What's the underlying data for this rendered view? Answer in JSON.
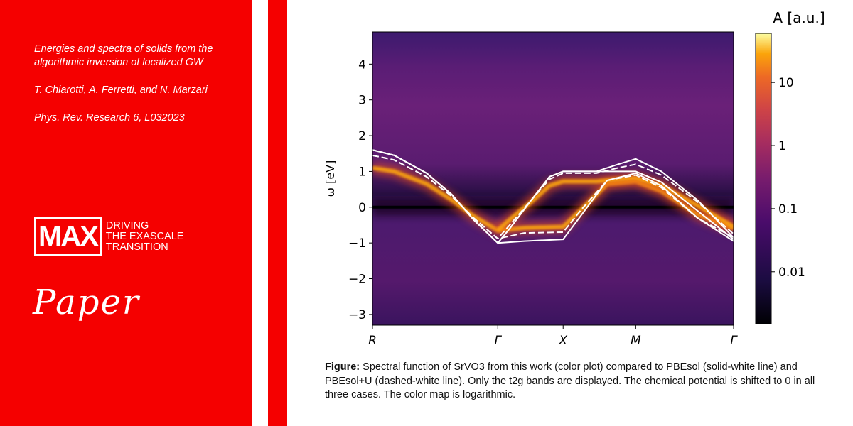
{
  "paper": {
    "title": "Energies and spectra of solids from the algorithmic inversion of localized GW",
    "authors": "T. Chiarotti, A. Ferretti, and N. Marzari",
    "journal": "Phys. Rev. Research 6, L032023"
  },
  "brand": {
    "logo_text": "MAX",
    "tagline": [
      "DRIVING",
      "THE EXASCALE",
      "TRANSITION"
    ],
    "label": "Paper",
    "color": "#f50000"
  },
  "caption": {
    "label": "Figure:",
    "text": "Spectral function of SrVO3 from this work (color plot) compared to PBEsol (solid-white line) and PBEsol+U (dashed-white line). Only the t2g bands are displayed. The chemical potential is shifted to 0 in all three cases. The color map is logarithmic."
  },
  "chart_data": {
    "type": "heatmap",
    "ylabel": "ω [eV]",
    "ylim": [
      -3.3,
      4.9
    ],
    "yticks": [
      4,
      3,
      2,
      1,
      0,
      -1,
      -2,
      -3
    ],
    "xticks": [
      {
        "label": "R",
        "x": 0
      },
      {
        "label": "Γ",
        "x": 0.347
      },
      {
        "label": "X",
        "x": 0.528
      },
      {
        "label": "M",
        "x": 0.729
      },
      {
        "label": "Γ",
        "x": 1
      }
    ],
    "colorbar": {
      "title": "A [a.u.]",
      "scale": "log",
      "ticks": [
        "10",
        "1",
        "0.1",
        "0.01"
      ],
      "tick_values": [
        10,
        1,
        0.1,
        0.01
      ],
      "range": [
        0.0015,
        60
      ]
    },
    "series": [
      {
        "style": "solid-white",
        "lines": [
          [
            [
              0,
              1.6
            ],
            [
              0.06,
              1.45
            ],
            [
              0.15,
              0.95
            ],
            [
              0.22,
              0.35
            ],
            [
              0.28,
              -0.35
            ],
            [
              0.347,
              -1.0
            ],
            [
              0.42,
              -0.95
            ],
            [
              0.528,
              -0.9
            ],
            [
              0.58,
              -0.2
            ],
            [
              0.65,
              0.75
            ],
            [
              0.729,
              0.95
            ],
            [
              0.8,
              0.6
            ],
            [
              0.9,
              -0.3
            ],
            [
              1,
              -0.95
            ]
          ],
          [
            [
              0,
              1.6
            ],
            [
              0.06,
              1.45
            ],
            [
              0.15,
              0.95
            ],
            [
              0.22,
              0.35
            ],
            [
              0.28,
              -0.35
            ],
            [
              0.347,
              -1.0
            ],
            [
              0.38,
              -0.6
            ],
            [
              0.44,
              0.2
            ],
            [
              0.49,
              0.85
            ],
            [
              0.528,
              1.0
            ],
            [
              0.62,
              1.0
            ],
            [
              0.68,
              1.2
            ],
            [
              0.729,
              1.35
            ],
            [
              0.8,
              1.0
            ],
            [
              0.9,
              0.2
            ],
            [
              1,
              -0.85
            ]
          ],
          [
            [
              0,
              1.6
            ],
            [
              0.06,
              1.45
            ],
            [
              0.15,
              0.95
            ],
            [
              0.22,
              0.35
            ],
            [
              0.28,
              -0.35
            ],
            [
              0.347,
              -1.0
            ],
            [
              0.38,
              -0.6
            ],
            [
              0.44,
              0.2
            ],
            [
              0.49,
              0.85
            ],
            [
              0.528,
              1.0
            ],
            [
              0.729,
              1.0
            ],
            [
              0.8,
              0.7
            ],
            [
              0.9,
              -0.1
            ],
            [
              1,
              -0.9
            ]
          ]
        ]
      },
      {
        "style": "dashed-white",
        "lines": [
          [
            [
              0,
              1.45
            ],
            [
              0.06,
              1.32
            ],
            [
              0.15,
              0.85
            ],
            [
              0.22,
              0.3
            ],
            [
              0.28,
              -0.3
            ],
            [
              0.347,
              -0.88
            ],
            [
              0.42,
              -0.72
            ],
            [
              0.528,
              -0.7
            ],
            [
              0.58,
              -0.05
            ],
            [
              0.65,
              0.75
            ],
            [
              0.729,
              0.9
            ],
            [
              0.8,
              0.55
            ],
            [
              0.9,
              -0.3
            ],
            [
              1,
              -0.85
            ]
          ],
          [
            [
              0,
              1.45
            ],
            [
              0.06,
              1.32
            ],
            [
              0.15,
              0.85
            ],
            [
              0.22,
              0.3
            ],
            [
              0.28,
              -0.3
            ],
            [
              0.347,
              -0.88
            ],
            [
              0.38,
              -0.5
            ],
            [
              0.44,
              0.2
            ],
            [
              0.49,
              0.78
            ],
            [
              0.528,
              0.95
            ],
            [
              0.62,
              0.95
            ],
            [
              0.68,
              1.1
            ],
            [
              0.729,
              1.2
            ],
            [
              0.8,
              0.9
            ],
            [
              0.9,
              0.15
            ],
            [
              1,
              -0.75
            ]
          ]
        ]
      }
    ],
    "spectral_bands": [
      [
        [
          0,
          1.1
        ],
        [
          0.06,
          1.0
        ],
        [
          0.15,
          0.65
        ],
        [
          0.22,
          0.2
        ],
        [
          0.28,
          -0.25
        ],
        [
          0.347,
          -0.65
        ],
        [
          0.42,
          -0.58
        ],
        [
          0.528,
          -0.55
        ],
        [
          0.58,
          -0.05
        ],
        [
          0.65,
          0.65
        ],
        [
          0.729,
          0.72
        ],
        [
          0.8,
          0.45
        ],
        [
          0.9,
          -0.2
        ],
        [
          1,
          -0.6
        ]
      ],
      [
        [
          0.347,
          -0.65
        ],
        [
          0.38,
          -0.35
        ],
        [
          0.44,
          0.15
        ],
        [
          0.49,
          0.6
        ],
        [
          0.528,
          0.72
        ],
        [
          0.62,
          0.72
        ],
        [
          0.68,
          0.78
        ],
        [
          0.729,
          0.82
        ],
        [
          0.8,
          0.6
        ],
        [
          0.9,
          0.05
        ],
        [
          1,
          -0.55
        ]
      ]
    ]
  }
}
